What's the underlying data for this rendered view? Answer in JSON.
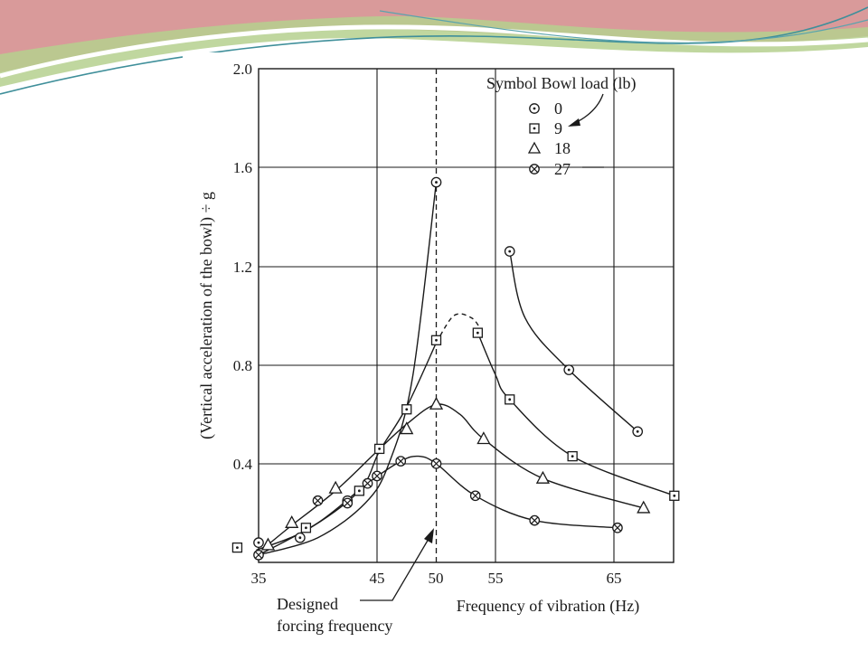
{
  "colors": {
    "banner_pink": "#d99a9a",
    "banner_green": "#b5d08e",
    "banner_teal": "#3f8f9a",
    "ink": "#1a1a1a"
  },
  "chart_data": {
    "type": "scatter",
    "xlabel": "Frequency of vibration (Hz)",
    "ylabel": "(Vertical acceleration of the bowl) ÷ g",
    "xlim": [
      34,
      70
    ],
    "ylim": [
      0,
      2.0
    ],
    "x_ticks": [
      35,
      45,
      50,
      55,
      65
    ],
    "x_tick_labels": [
      "35",
      "45",
      "50",
      "55",
      "65"
    ],
    "y_ticks": [
      0.4,
      0.8,
      1.2,
      1.6,
      2.0
    ],
    "y_tick_labels": [
      "0.4",
      "0.8",
      "1.2",
      "1.6",
      "2.0"
    ],
    "grid": true,
    "legend_position": "top-right",
    "legend_title": "Symbol Bowl load (lb)",
    "vline": {
      "x": 50,
      "style": "dashed"
    },
    "annotation": {
      "line1": "Designed",
      "line2": "forcing frequency",
      "points_to_x": 50
    },
    "series": [
      {
        "name": "0",
        "marker": "circle-dot",
        "points": [
          [
            35,
            0.08
          ],
          [
            38.5,
            0.1
          ],
          [
            42.5,
            0.25
          ],
          [
            50,
            1.54
          ],
          [
            56.2,
            1.26
          ],
          [
            61.2,
            0.78
          ],
          [
            67,
            0.53
          ]
        ],
        "curve_rise": [
          [
            35,
            0.03
          ],
          [
            40,
            0.1
          ],
          [
            44,
            0.24
          ],
          [
            46,
            0.4
          ],
          [
            48,
            0.75
          ],
          [
            50,
            1.54
          ]
        ],
        "curve_fall": [
          [
            56.2,
            1.26
          ],
          [
            57.5,
            0.99
          ],
          [
            61.2,
            0.78
          ],
          [
            67,
            0.53
          ]
        ]
      },
      {
        "name": "9",
        "marker": "square-dot",
        "points": [
          [
            33.2,
            0.06
          ],
          [
            39,
            0.14
          ],
          [
            43.5,
            0.29
          ],
          [
            45.2,
            0.46
          ],
          [
            47.5,
            0.62
          ],
          [
            50,
            0.9
          ],
          [
            53.5,
            0.93
          ],
          [
            56.2,
            0.66
          ],
          [
            61.5,
            0.43
          ],
          [
            70.1,
            0.27
          ]
        ],
        "curve_rise": [
          [
            34.8,
            0.05
          ],
          [
            39,
            0.13
          ],
          [
            43.5,
            0.29
          ],
          [
            45.2,
            0.45
          ],
          [
            47.5,
            0.63
          ],
          [
            50,
            0.89
          ]
        ],
        "curve_peak": [
          [
            50,
            0.89
          ],
          [
            51.5,
            1.0
          ],
          [
            53,
            0.99
          ],
          [
            53.8,
            0.94
          ]
        ],
        "curve_fall": [
          [
            53.5,
            0.93
          ],
          [
            55,
            0.76
          ],
          [
            56.2,
            0.66
          ],
          [
            61.5,
            0.43
          ],
          [
            70.1,
            0.27
          ]
        ]
      },
      {
        "name": "18",
        "marker": "triangle",
        "points": [
          [
            35.8,
            0.07
          ],
          [
            37.8,
            0.16
          ],
          [
            41.5,
            0.3
          ],
          [
            47.5,
            0.54
          ],
          [
            50,
            0.64
          ],
          [
            54,
            0.5
          ],
          [
            59,
            0.34
          ],
          [
            67.5,
            0.22
          ]
        ],
        "curve": [
          [
            35.5,
            0.06
          ],
          [
            37.8,
            0.15
          ],
          [
            41.5,
            0.29
          ],
          [
            45,
            0.45
          ],
          [
            47.5,
            0.56
          ],
          [
            50,
            0.64
          ],
          [
            52,
            0.6
          ],
          [
            54,
            0.5
          ],
          [
            59,
            0.34
          ],
          [
            67.5,
            0.22
          ]
        ]
      },
      {
        "name": "27",
        "marker": "circle-x",
        "points": [
          [
            35,
            0.03
          ],
          [
            40,
            0.25
          ],
          [
            42.5,
            0.24
          ],
          [
            44.2,
            0.32
          ],
          [
            45,
            0.35
          ],
          [
            47,
            0.41
          ],
          [
            50,
            0.4
          ],
          [
            53.3,
            0.27
          ],
          [
            58.3,
            0.17
          ],
          [
            65.3,
            0.14
          ]
        ],
        "curve": [
          [
            35,
            0.03
          ],
          [
            40,
            0.16
          ],
          [
            44.2,
            0.32
          ],
          [
            47,
            0.41
          ],
          [
            48.5,
            0.43
          ],
          [
            50,
            0.4
          ],
          [
            53.3,
            0.27
          ],
          [
            58.3,
            0.17
          ],
          [
            65.3,
            0.14
          ]
        ]
      }
    ]
  }
}
